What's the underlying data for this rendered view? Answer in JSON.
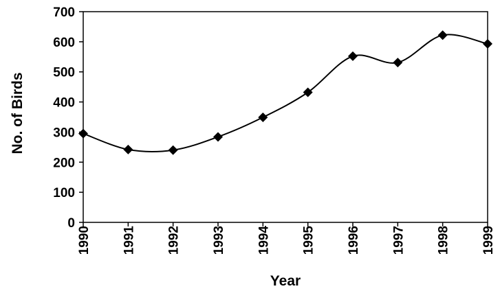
{
  "chart_data": {
    "type": "line",
    "x": [
      "1990",
      "1991",
      "1992",
      "1993",
      "1994",
      "1995",
      "1996",
      "1997",
      "1998",
      "1999"
    ],
    "series": [
      {
        "values": [
          295,
          242,
          240,
          284,
          349,
          432,
          552,
          531,
          622,
          593
        ]
      }
    ],
    "xlabel": "Year",
    "ylabel": "No. of Birds",
    "ylim": [
      0,
      700
    ],
    "yticks": [
      "0",
      "100",
      "200",
      "300",
      "400",
      "500",
      "600",
      "700"
    ],
    "grid": false,
    "legend": "none",
    "marker": "diamond",
    "line_style": "smoothed",
    "colors": {
      "line": "#000000",
      "marker": "#000000"
    }
  }
}
